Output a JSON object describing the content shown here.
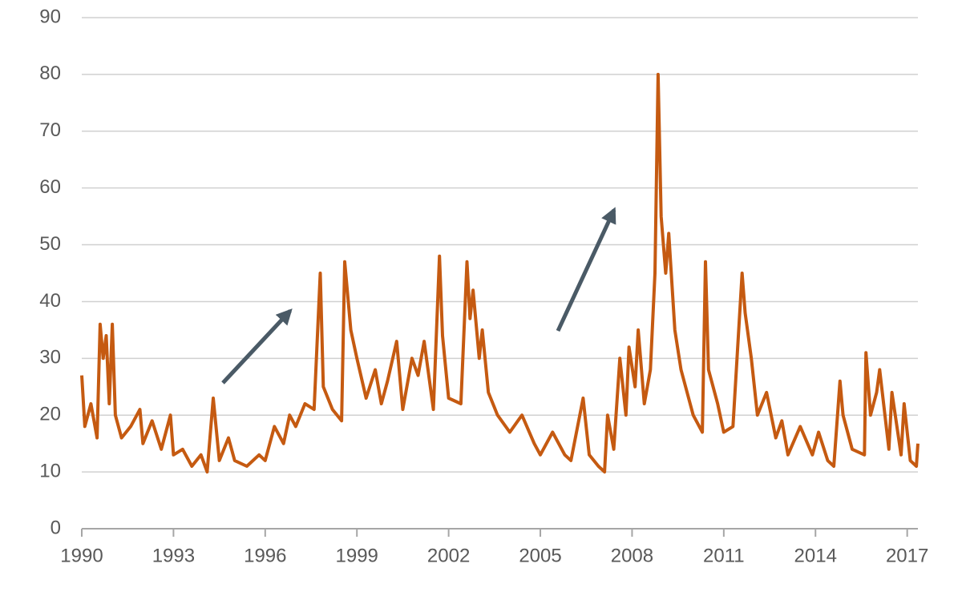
{
  "chart_data": {
    "type": "line",
    "x": [
      1990.0,
      1990.1,
      1990.3,
      1990.5,
      1990.6,
      1990.7,
      1990.8,
      1990.9,
      1991.0,
      1991.1,
      1991.3,
      1991.6,
      1991.9,
      1992.0,
      1992.3,
      1992.6,
      1992.9,
      1993.0,
      1993.3,
      1993.6,
      1993.9,
      1994.1,
      1994.3,
      1994.5,
      1994.8,
      1995.0,
      1995.4,
      1995.8,
      1996.0,
      1996.3,
      1996.6,
      1996.8,
      1997.0,
      1997.3,
      1997.6,
      1997.8,
      1997.9,
      1998.2,
      1998.5,
      1998.6,
      1998.8,
      1999.0,
      1999.3,
      1999.6,
      1999.8,
      2000.0,
      2000.3,
      2000.5,
      2000.8,
      2001.0,
      2001.2,
      2001.5,
      2001.7,
      2001.8,
      2002.0,
      2002.4,
      2002.6,
      2002.7,
      2002.8,
      2003.0,
      2003.1,
      2003.3,
      2003.6,
      2004.0,
      2004.4,
      2004.8,
      2005.0,
      2005.4,
      2005.8,
      2006.0,
      2006.4,
      2006.6,
      2006.9,
      2007.1,
      2007.2,
      2007.4,
      2007.6,
      2007.8,
      2007.9,
      2008.1,
      2008.2,
      2008.4,
      2008.6,
      2008.75,
      2008.85,
      2008.95,
      2009.1,
      2009.2,
      2009.4,
      2009.6,
      2009.8,
      2010.0,
      2010.3,
      2010.4,
      2010.5,
      2010.8,
      2011.0,
      2011.3,
      2011.6,
      2011.7,
      2011.9,
      2012.1,
      2012.4,
      2012.7,
      2012.9,
      2013.1,
      2013.5,
      2013.9,
      2014.1,
      2014.4,
      2014.6,
      2014.8,
      2014.9,
      2015.2,
      2015.6,
      2015.65,
      2015.8,
      2016.0,
      2016.1,
      2016.4,
      2016.5,
      2016.8,
      2016.9,
      2017.1,
      2017.3,
      2017.35
    ],
    "series": [
      {
        "color": "#c55a11",
        "values": [
          27,
          18,
          22,
          16,
          36,
          30,
          34,
          22,
          36,
          20,
          16,
          18,
          21,
          15,
          19,
          14,
          20,
          13,
          14,
          11,
          13,
          10,
          23,
          12,
          16,
          12,
          11,
          13,
          12,
          18,
          15,
          20,
          18,
          22,
          21,
          45,
          25,
          21,
          19,
          47,
          35,
          30,
          23,
          28,
          22,
          26,
          33,
          21,
          30,
          27,
          33,
          21,
          48,
          34,
          23,
          22,
          47,
          37,
          42,
          30,
          35,
          24,
          20,
          17,
          20,
          15,
          13,
          17,
          13,
          12,
          23,
          13,
          11,
          10,
          20,
          14,
          30,
          20,
          32,
          25,
          35,
          22,
          28,
          45,
          80,
          55,
          45,
          52,
          35,
          28,
          24,
          20,
          17,
          47,
          28,
          22,
          17,
          18,
          45,
          38,
          30,
          20,
          24,
          16,
          19,
          13,
          18,
          13,
          17,
          12,
          11,
          26,
          20,
          14,
          13,
          31,
          20,
          24,
          28,
          14,
          24,
          13,
          22,
          12,
          11,
          15
        ]
      }
    ],
    "xlim": [
      1990,
      2017.35
    ],
    "xticks": [
      1990,
      1993,
      1996,
      1999,
      2002,
      2005,
      2008,
      2011,
      2014,
      2017
    ],
    "ylim": [
      0,
      90
    ],
    "yticks": [
      0,
      10,
      20,
      30,
      40,
      50,
      60,
      70,
      80,
      90
    ],
    "grid": true
  }
}
